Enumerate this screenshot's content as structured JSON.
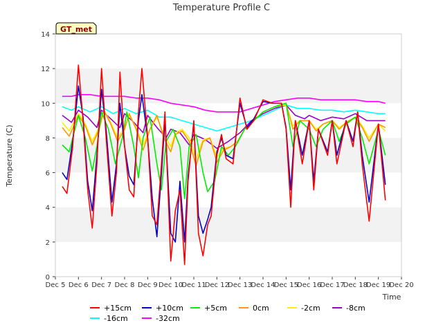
{
  "chart_data": {
    "type": "line",
    "title": "Temperature Profile C",
    "xlabel": "Time",
    "ylabel": "Temperature (C)",
    "xlim": [
      5,
      20
    ],
    "ylim": [
      0,
      14
    ],
    "x_ticks": [
      5,
      6,
      7,
      8,
      9,
      10,
      11,
      12,
      13,
      14,
      15,
      16,
      17,
      18,
      19,
      20
    ],
    "x_tick_labels": [
      "Dec 5",
      "Dec 6",
      "Dec 7",
      "Dec 8",
      "Dec 9",
      "Dec 10",
      "Dec 11",
      "Dec 12",
      "Dec 13",
      "Dec 14",
      "Dec 15",
      "Dec 16",
      "Dec 17",
      "Dec 18",
      "Dec 19",
      "Dec 20"
    ],
    "y_ticks": [
      0,
      2,
      4,
      6,
      8,
      10,
      12,
      14
    ],
    "y_tick_labels": [
      "0",
      "2",
      "4",
      "6",
      "8",
      "10",
      "12",
      "14"
    ],
    "grid": "horizontal alternating bands",
    "legend_position": "bottom",
    "annotation": "GT_met",
    "series": [
      {
        "name": "+15cm",
        "color": "#ff0000",
        "x": [
          5.3,
          5.5,
          5.75,
          6.0,
          6.2,
          6.4,
          6.6,
          6.8,
          7.0,
          7.2,
          7.45,
          7.65,
          7.8,
          8.0,
          8.2,
          8.4,
          8.6,
          8.75,
          9.0,
          9.2,
          9.4,
          9.6,
          9.75,
          10.0,
          10.2,
          10.4,
          10.6,
          10.75,
          11.0,
          11.2,
          11.4,
          11.6,
          11.75,
          12.0,
          12.2,
          12.4,
          12.7,
          13.0,
          13.3,
          13.6,
          14.0,
          14.4,
          14.8,
          15.0,
          15.2,
          15.4,
          15.7,
          16.0,
          16.2,
          16.4,
          16.8,
          17.0,
          17.2,
          17.6,
          17.9,
          18.1,
          18.3,
          18.6,
          19.0,
          19.3
        ],
        "y": [
          5.2,
          4.8,
          7.5,
          12.2,
          9.0,
          5.0,
          2.8,
          6.5,
          12.0,
          8.0,
          3.5,
          6.0,
          11.8,
          7.5,
          5.0,
          4.6,
          9.5,
          12.0,
          8.0,
          3.5,
          3.0,
          6.5,
          9.5,
          0.9,
          3.8,
          5.0,
          0.7,
          5.5,
          9.0,
          2.5,
          1.2,
          3.0,
          3.5,
          7.0,
          8.2,
          6.8,
          6.5,
          10.3,
          8.5,
          9.0,
          10.2,
          10.0,
          10.0,
          8.5,
          4.0,
          9.0,
          6.5,
          9.0,
          5.0,
          8.5,
          7.0,
          9.0,
          6.5,
          9.0,
          7.5,
          9.5,
          6.5,
          3.2,
          8.8,
          4.4
        ]
      },
      {
        "name": "+10cm",
        "color": "#0000cc",
        "x": [
          5.3,
          5.5,
          5.75,
          6.0,
          6.2,
          6.4,
          6.6,
          6.8,
          7.0,
          7.2,
          7.45,
          7.65,
          7.8,
          8.0,
          8.2,
          8.4,
          8.6,
          8.75,
          9.0,
          9.2,
          9.4,
          9.6,
          9.75,
          10.0,
          10.2,
          10.4,
          10.6,
          10.75,
          11.0,
          11.2,
          11.4,
          11.6,
          11.75,
          12.0,
          12.2,
          12.4,
          12.7,
          13.0,
          13.3,
          13.6,
          14.0,
          14.4,
          14.8,
          15.0,
          15.2,
          15.4,
          15.7,
          16.0,
          16.2,
          16.4,
          16.8,
          17.0,
          17.2,
          17.6,
          17.9,
          18.1,
          18.3,
          18.6,
          19.0,
          19.3
        ],
        "y": [
          6.0,
          5.6,
          7.8,
          11.0,
          9.2,
          5.5,
          3.8,
          7.0,
          10.8,
          8.5,
          4.3,
          6.5,
          10.0,
          7.5,
          5.8,
          5.3,
          9.0,
          10.5,
          8.0,
          4.5,
          2.3,
          6.0,
          9.0,
          2.5,
          2.0,
          5.5,
          2.0,
          5.8,
          8.8,
          3.5,
          2.5,
          3.3,
          4.0,
          7.2,
          8.0,
          7.0,
          6.8,
          10.0,
          8.6,
          9.1,
          10.1,
          10.0,
          10.0,
          8.6,
          5.0,
          9.0,
          7.0,
          9.0,
          5.5,
          8.5,
          7.2,
          9.0,
          7.0,
          9.0,
          7.8,
          9.5,
          7.0,
          4.3,
          8.8,
          5.3
        ]
      },
      {
        "name": "+5cm",
        "color": "#00ee00",
        "x": [
          5.3,
          5.6,
          6.0,
          6.3,
          6.6,
          6.8,
          7.0,
          7.3,
          7.6,
          7.9,
          8.1,
          8.4,
          8.6,
          8.8,
          9.1,
          9.4,
          9.6,
          9.8,
          10.1,
          10.4,
          10.6,
          10.8,
          11.1,
          11.4,
          11.6,
          11.9,
          12.2,
          12.5,
          12.8,
          13.2,
          13.6,
          14.0,
          14.5,
          15.0,
          15.3,
          15.6,
          16.0,
          16.3,
          16.6,
          17.0,
          17.3,
          17.6,
          18.0,
          18.3,
          18.6,
          19.0,
          19.3
        ],
        "y": [
          7.6,
          7.2,
          9.3,
          8.0,
          6.1,
          7.5,
          9.5,
          8.5,
          6.5,
          8.0,
          9.5,
          7.5,
          5.7,
          8.0,
          9.2,
          6.5,
          5.0,
          7.8,
          8.5,
          7.5,
          4.5,
          7.5,
          8.2,
          6.0,
          4.9,
          5.5,
          7.5,
          7.0,
          7.5,
          8.5,
          9.0,
          9.5,
          9.8,
          10.0,
          7.5,
          9.0,
          8.5,
          7.5,
          8.5,
          9.0,
          7.8,
          8.8,
          9.2,
          8.0,
          6.5,
          8.5,
          7.0
        ]
      },
      {
        "name": "0cm",
        "color": "#ff9900",
        "x": [
          5.3,
          5.6,
          6.0,
          6.3,
          6.6,
          6.9,
          7.1,
          7.4,
          7.7,
          8.0,
          8.2,
          8.5,
          8.8,
          9.1,
          9.4,
          9.7,
          10.0,
          10.2,
          10.5,
          10.8,
          11.1,
          11.4,
          11.7,
          12.0,
          12.3,
          12.6,
          12.9,
          13.2,
          13.6,
          14.0,
          14.5,
          15.0,
          15.3,
          15.6,
          16.0,
          16.3,
          16.6,
          17.0,
          17.3,
          17.6,
          18.0,
          18.3,
          18.6,
          19.0,
          19.3
        ],
        "y": [
          8.6,
          8.1,
          9.3,
          8.7,
          7.6,
          8.5,
          9.6,
          8.8,
          7.8,
          8.5,
          9.4,
          8.5,
          7.3,
          8.5,
          9.3,
          8.0,
          7.2,
          8.2,
          8.4,
          7.8,
          6.4,
          7.8,
          8.0,
          6.6,
          7.3,
          7.5,
          7.8,
          8.5,
          9.0,
          9.5,
          9.8,
          10.0,
          8.5,
          9.0,
          9.0,
          8.4,
          8.8,
          9.0,
          8.5,
          8.9,
          9.2,
          8.6,
          7.8,
          8.8,
          8.6
        ]
      },
      {
        "name": "-2cm",
        "color": "#ffee00",
        "x": [
          5.3,
          5.6,
          6.0,
          6.3,
          6.6,
          6.9,
          7.1,
          7.4,
          7.7,
          8.0,
          8.2,
          8.5,
          8.8,
          9.1,
          9.4,
          9.7,
          10.0,
          10.2,
          10.5,
          10.8,
          11.1,
          11.4,
          11.7,
          12.0,
          12.3,
          12.6,
          12.9,
          13.2,
          13.6,
          14.0,
          14.5,
          15.0,
          15.3,
          15.6,
          16.0,
          16.3,
          16.6,
          17.0,
          17.3,
          17.6,
          18.0,
          18.3,
          18.6,
          19.0,
          19.3
        ],
        "y": [
          8.9,
          8.4,
          9.4,
          8.8,
          7.8,
          8.6,
          9.6,
          8.9,
          8.0,
          8.6,
          9.3,
          8.6,
          7.6,
          8.5,
          9.2,
          8.2,
          7.5,
          8.3,
          8.5,
          8.0,
          6.8,
          7.9,
          8.0,
          6.9,
          7.4,
          7.5,
          7.8,
          8.5,
          9.0,
          9.5,
          9.8,
          9.9,
          8.7,
          9.0,
          9.0,
          8.5,
          8.8,
          9.0,
          8.6,
          8.9,
          9.2,
          8.7,
          8.0,
          8.8,
          8.4
        ]
      },
      {
        "name": "-8cm",
        "color": "#9900cc",
        "x": [
          5.3,
          5.7,
          6.0,
          6.4,
          6.8,
          7.0,
          7.4,
          7.8,
          8.0,
          8.4,
          8.8,
          9.0,
          9.4,
          9.8,
          10.0,
          10.4,
          10.8,
          11.0,
          11.5,
          12.0,
          12.5,
          13.0,
          13.5,
          14.0,
          14.5,
          15.0,
          15.4,
          15.8,
          16.0,
          16.5,
          17.0,
          17.5,
          18.0,
          18.5,
          19.0,
          19.3
        ],
        "y": [
          9.3,
          8.9,
          9.6,
          9.2,
          8.6,
          9.6,
          9.1,
          8.6,
          9.4,
          8.9,
          8.3,
          9.3,
          8.6,
          8.0,
          8.5,
          8.3,
          7.6,
          8.2,
          7.9,
          7.4,
          7.8,
          8.3,
          9.0,
          9.4,
          9.7,
          9.9,
          9.3,
          9.1,
          9.3,
          9.0,
          9.2,
          9.1,
          9.4,
          9.0,
          9.0,
          9.0
        ]
      },
      {
        "name": "-16cm",
        "color": "#00ffff",
        "x": [
          5.3,
          5.7,
          6.0,
          6.5,
          7.0,
          7.5,
          8.0,
          8.5,
          9.0,
          9.5,
          10.0,
          10.5,
          11.0,
          11.5,
          12.0,
          12.5,
          13.0,
          13.5,
          14.0,
          14.5,
          15.0,
          15.5,
          16.0,
          16.5,
          17.0,
          17.5,
          18.0,
          18.5,
          19.0,
          19.3
        ],
        "y": [
          9.8,
          9.6,
          9.8,
          9.5,
          9.8,
          9.4,
          9.7,
          9.4,
          9.6,
          9.2,
          9.2,
          9.0,
          8.8,
          8.6,
          8.4,
          8.6,
          8.8,
          9.0,
          9.3,
          9.6,
          9.9,
          9.7,
          9.7,
          9.6,
          9.6,
          9.5,
          9.6,
          9.5,
          9.4,
          9.4
        ]
      },
      {
        "name": "-32cm",
        "color": "#ff00ff",
        "x": [
          5.3,
          5.7,
          6.0,
          6.5,
          7.0,
          7.5,
          8.0,
          8.5,
          9.0,
          9.5,
          10.0,
          10.5,
          11.0,
          11.5,
          12.0,
          12.5,
          13.0,
          13.5,
          14.0,
          14.5,
          15.0,
          15.5,
          16.0,
          16.5,
          17.0,
          17.5,
          18.0,
          18.5,
          19.0,
          19.3
        ],
        "y": [
          10.4,
          10.4,
          10.5,
          10.5,
          10.4,
          10.4,
          10.4,
          10.3,
          10.3,
          10.2,
          10.0,
          9.9,
          9.8,
          9.6,
          9.5,
          9.5,
          9.5,
          9.7,
          9.9,
          10.1,
          10.2,
          10.3,
          10.3,
          10.2,
          10.2,
          10.2,
          10.2,
          10.1,
          10.1,
          10.0
        ]
      }
    ]
  }
}
